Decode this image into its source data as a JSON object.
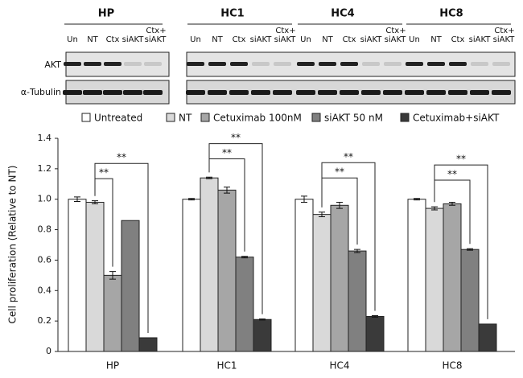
{
  "blot": {
    "groups": [
      "HP",
      "HC1",
      "HC4",
      "HC8"
    ],
    "lanes": [
      "Un",
      "NT",
      "Ctx",
      "siAKT",
      "Ctx+",
      "siAKT"
    ],
    "rows": [
      "AKT",
      "α-Tubulin"
    ]
  },
  "chart_data": {
    "type": "bar",
    "y_label": "Cell proliferation (Relative to NT)",
    "categories": [
      "HP",
      "HC1",
      "HC4",
      "HC8"
    ],
    "series": [
      {
        "name": "Untreated",
        "color": "#ffffff",
        "values": [
          1.0,
          1.0,
          1.0,
          1.0
        ],
        "errors": [
          0.015,
          0.005,
          0.02,
          0.005
        ]
      },
      {
        "name": "NT",
        "color": "#d9d9d9",
        "values": [
          0.98,
          1.14,
          0.9,
          0.94
        ],
        "errors": [
          0.01,
          0.005,
          0.015,
          0.01
        ]
      },
      {
        "name": "Cetuximab 100nM",
        "color": "#a6a6a6",
        "values": [
          0.5,
          1.06,
          0.96,
          0.97
        ],
        "errors": [
          0.025,
          0.02,
          0.02,
          0.01
        ]
      },
      {
        "name": "siAKT 50 nM",
        "color": "#808080",
        "values": [
          0.86,
          0.62,
          0.66,
          0.67
        ],
        "errors": [
          0,
          0.005,
          0.01,
          0.005
        ]
      },
      {
        "name": "Cetuximab+siAKT",
        "color": "#3a3a3a",
        "values": [
          0.09,
          0.21,
          0.23,
          0.18
        ],
        "errors": [
          0,
          0.003,
          0.005,
          0
        ]
      }
    ],
    "ylim": [
      0,
      1.4
    ],
    "yticks": [
      0,
      0.2,
      0.4,
      0.6,
      0.8,
      {
        "value": 1,
        "label": "1.0"
      },
      1.2,
      1.4
    ],
    "annotations": [
      {
        "text": "**",
        "category": "HP",
        "series": [
          "NT",
          "Cetuximab 100nM"
        ]
      },
      {
        "text": "**",
        "category": "HP",
        "series": [
          "NT",
          "Cetuximab+siAKT"
        ]
      },
      {
        "text": "**",
        "category": "HC1",
        "series": [
          "NT",
          "siAKT 50 nM"
        ]
      },
      {
        "text": "**",
        "category": "HC1",
        "series": [
          "NT",
          "Cetuximab+siAKT"
        ]
      },
      {
        "text": "**",
        "category": "HC4",
        "series": [
          "NT",
          "siAKT 50 nM"
        ]
      },
      {
        "text": "**",
        "category": "HC4",
        "series": [
          "NT",
          "Cetuximab+siAKT"
        ]
      },
      {
        "text": "**",
        "category": "HC8",
        "series": [
          "NT",
          "siAKT 50 nM"
        ]
      },
      {
        "text": "**",
        "category": "HC8",
        "series": [
          "NT",
          "Cetuximab+siAKT"
        ]
      }
    ]
  }
}
